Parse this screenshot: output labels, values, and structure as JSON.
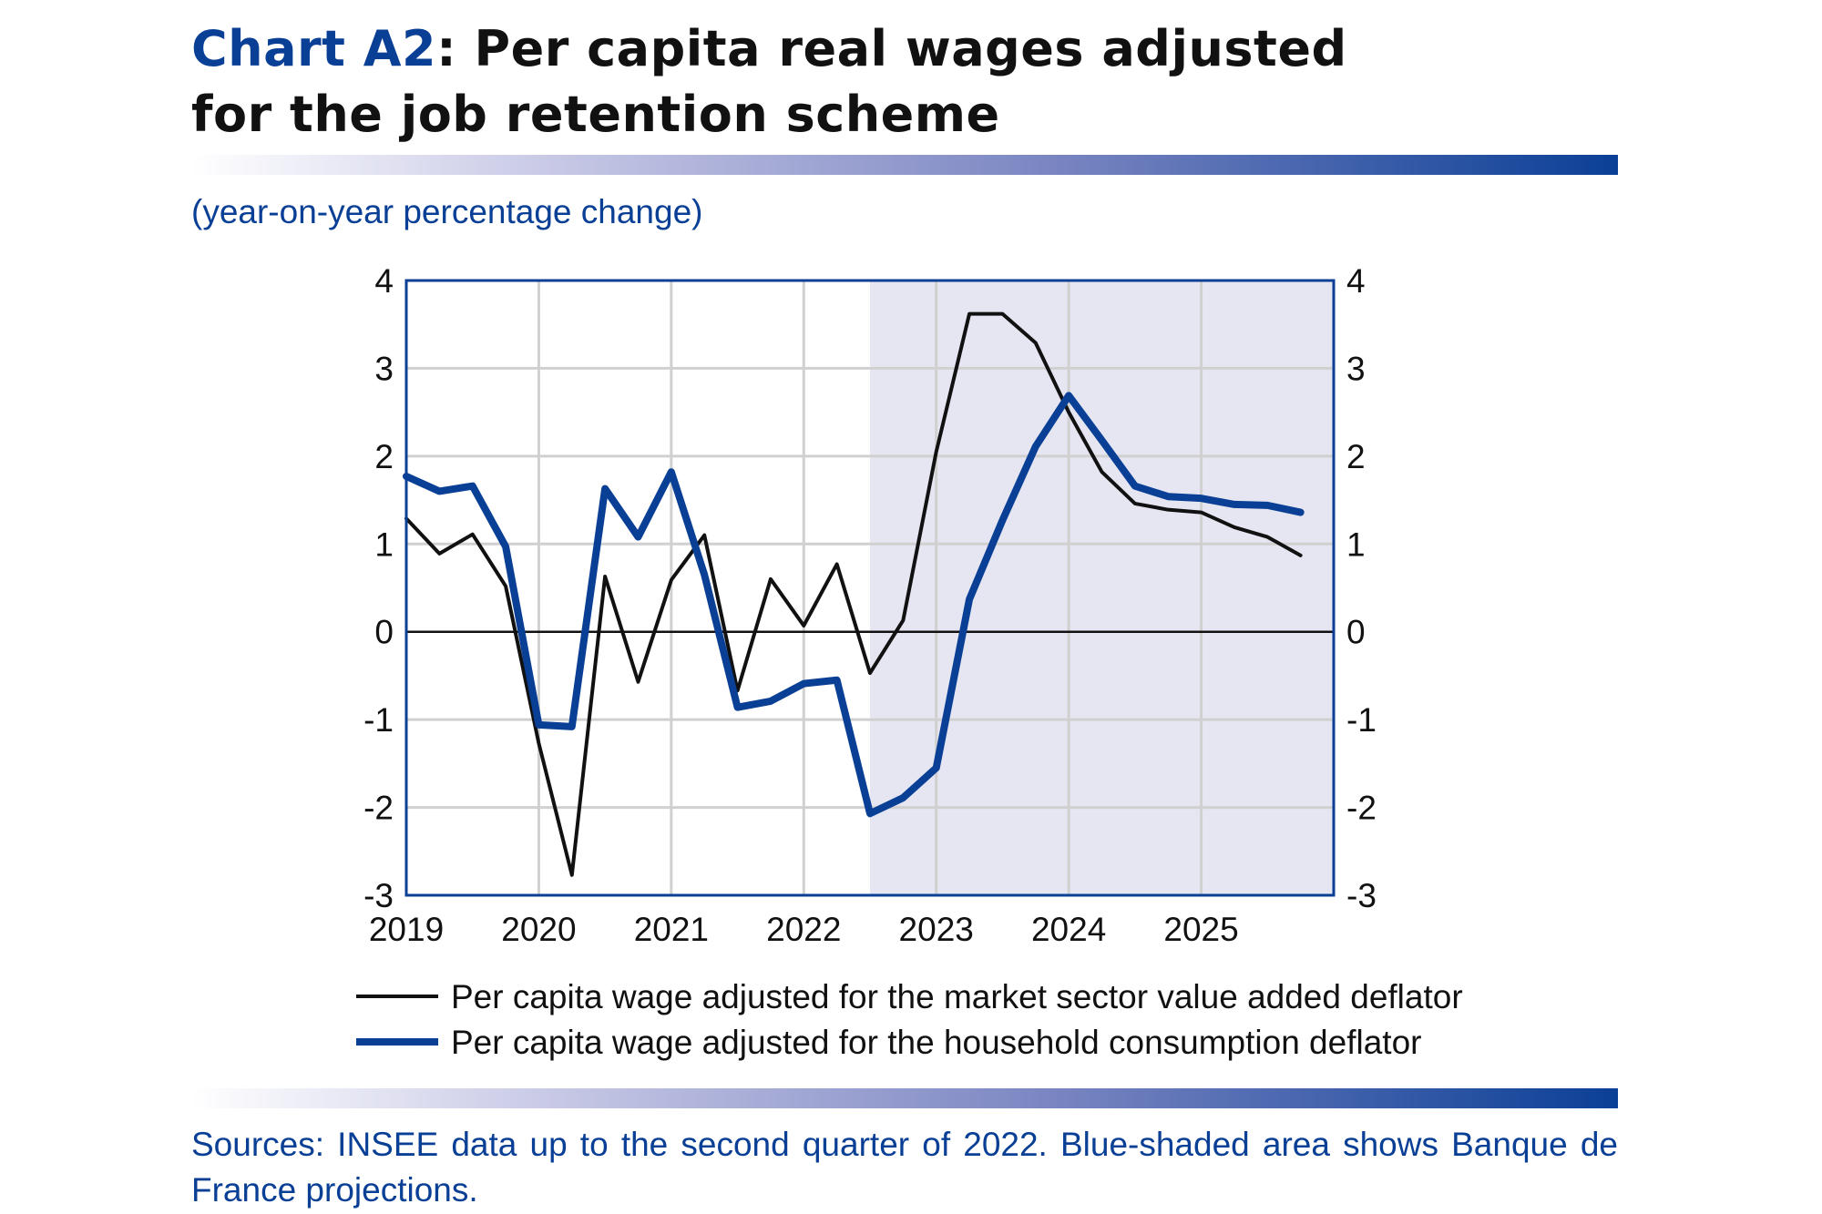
{
  "title": {
    "highlight": "Chart A2",
    "rest": ": Per capita real wages adjusted",
    "line2": "for the job retention scheme"
  },
  "subtitle": "(year-on-year percentage change)",
  "sources": "Sources: INSEE data up to the second quarter of 2022. Blue-shaded area shows Banque de France projections.",
  "colors": {
    "accent": "#0a3f96",
    "black_series": "#111111",
    "projection_shade": "#e6e6f2",
    "grid": "#d0d0d0"
  },
  "chart_data": {
    "type": "line",
    "x_ticks": [
      "2019",
      "2020",
      "2021",
      "2022",
      "2023",
      "2024",
      "2025"
    ],
    "x_start": "2019Q1",
    "x_end": "2025Q4",
    "frequency": "quarterly",
    "ylim": [
      -3,
      4
    ],
    "y_ticks": [
      "4",
      "3",
      "2",
      "1",
      "0",
      "-1",
      "-2",
      "-3"
    ],
    "grid": true,
    "dual_y_axis_labels": true,
    "projection_from": "2022Q3",
    "legend_placement": "bottom",
    "series": [
      {
        "name": "Per capita wage adjusted for the market sector value added deflator",
        "color": "#111111",
        "values": [
          1.29,
          0.89,
          1.11,
          0.52,
          -1.27,
          -2.77,
          0.63,
          -0.57,
          0.59,
          1.1,
          -0.67,
          0.6,
          0.07,
          0.77,
          -0.47,
          0.13,
          2.05,
          3.62,
          3.62,
          3.29,
          2.5,
          1.82,
          1.46,
          1.39,
          1.36,
          1.19,
          1.08,
          0.87
        ]
      },
      {
        "name": "Per capita wage adjusted for the household consumption deflator",
        "color": "#0a3f96",
        "values": [
          1.77,
          1.6,
          1.66,
          0.97,
          -1.06,
          -1.08,
          1.63,
          1.08,
          1.82,
          0.65,
          -0.86,
          -0.79,
          -0.59,
          -0.55,
          -2.07,
          -1.89,
          -1.55,
          0.37,
          1.27,
          2.11,
          2.69,
          2.18,
          1.66,
          1.54,
          1.52,
          1.45,
          1.44,
          1.36
        ]
      }
    ]
  }
}
